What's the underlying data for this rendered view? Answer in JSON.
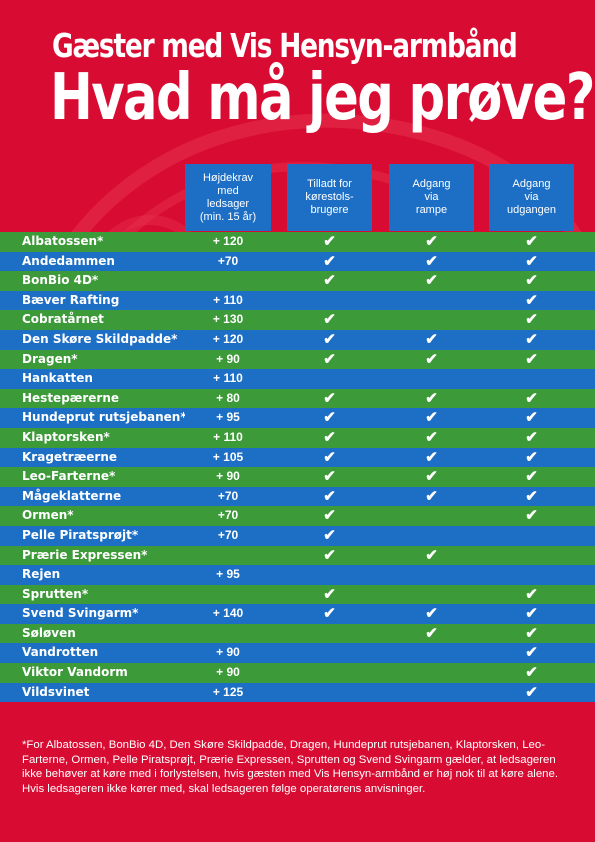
{
  "title_line1": "Gæster med Vis Hensyn-armbånd",
  "title_line2": "Hvad må jeg prøve?",
  "columns": [
    "Højdekrav\nmed\nledsager\n(min. 15 år)",
    "Tilladt for\nkørestols-\nbrugere",
    "Adgang\nvia\nrampe",
    "Adgang\nvia\nudgangen"
  ],
  "check_symbol": "✔",
  "colors": {
    "background": "#d80c32",
    "green_row": "#3d9a38",
    "blue_cell": "#1d6fc5"
  },
  "rows": [
    {
      "name": "Albatossen*",
      "height": "+ 120",
      "wheelchair": true,
      "ramp": true,
      "exit": true
    },
    {
      "name": "Andedammen",
      "height": "+70",
      "wheelchair": true,
      "ramp": true,
      "exit": true
    },
    {
      "name": "BonBio 4D*",
      "height": "",
      "wheelchair": true,
      "ramp": true,
      "exit": true
    },
    {
      "name": "Bæver Rafting",
      "height": "+ 110",
      "wheelchair": false,
      "ramp": false,
      "exit": true
    },
    {
      "name": "Cobratårnet",
      "height": "+ 130",
      "wheelchair": true,
      "ramp": false,
      "exit": true
    },
    {
      "name": "Den Skøre Skildpadde*",
      "height": "+ 120",
      "wheelchair": true,
      "ramp": true,
      "exit": true
    },
    {
      "name": "Dragen*",
      "height": "+ 90",
      "wheelchair": true,
      "ramp": true,
      "exit": true
    },
    {
      "name": "Hankatten",
      "height": "+ 110",
      "wheelchair": false,
      "ramp": false,
      "exit": false
    },
    {
      "name": "Hestepærerne",
      "height": "+ 80",
      "wheelchair": true,
      "ramp": true,
      "exit": true
    },
    {
      "name": "Hundeprut rutsjebanen*",
      "height": "+ 95",
      "wheelchair": true,
      "ramp": true,
      "exit": true
    },
    {
      "name": "Klaptorsken*",
      "height": "+ 110",
      "wheelchair": true,
      "ramp": true,
      "exit": true
    },
    {
      "name": "Kragetræerne",
      "height": "+ 105",
      "wheelchair": true,
      "ramp": true,
      "exit": true
    },
    {
      "name": "Leo-Farterne*",
      "height": "+ 90",
      "wheelchair": true,
      "ramp": true,
      "exit": true
    },
    {
      "name": "Mågeklatterne",
      "height": "+70",
      "wheelchair": true,
      "ramp": true,
      "exit": true
    },
    {
      "name": "Ormen*",
      "height": "+70",
      "wheelchair": true,
      "ramp": false,
      "exit": true
    },
    {
      "name": "Pelle Piratsprøjt*",
      "height": "+70",
      "wheelchair": true,
      "ramp": false,
      "exit": false
    },
    {
      "name": "Prærie Expressen*",
      "height": "",
      "wheelchair": true,
      "ramp": true,
      "exit": false
    },
    {
      "name": "Rejen",
      "height": "+ 95",
      "wheelchair": false,
      "ramp": false,
      "exit": false
    },
    {
      "name": "Sprutten*",
      "height": "",
      "wheelchair": true,
      "ramp": false,
      "exit": true
    },
    {
      "name": "Svend Svingarm*",
      "height": "+ 140",
      "wheelchair": true,
      "ramp": true,
      "exit": true
    },
    {
      "name": "Søløven",
      "height": "",
      "wheelchair": false,
      "ramp": true,
      "exit": true
    },
    {
      "name": "Vandrotten",
      "height": "+ 90",
      "wheelchair": false,
      "ramp": false,
      "exit": true
    },
    {
      "name": "Viktor Vandorm",
      "height": "+ 90",
      "wheelchair": false,
      "ramp": false,
      "exit": true
    },
    {
      "name": "Vildsvinet",
      "height": "+ 125",
      "wheelchair": false,
      "ramp": false,
      "exit": true
    }
  ],
  "row_colors": [
    "green",
    "blue",
    "green",
    "blue",
    "green",
    "blue",
    "green",
    "blue",
    "green",
    "blue",
    "green",
    "blue",
    "green",
    "blue",
    "green",
    "blue",
    "green",
    "blue",
    "green",
    "blue",
    "green",
    "blue",
    "green",
    "blue"
  ],
  "footnote": "*For Albatossen, BonBio 4D, Den Skøre Skildpadde, Dragen, Hundeprut rutsjebanen, Klaptorsken, Leo-Farterne, Ormen, Pelle Piratsprøjt, Prærie Expressen, Sprutten og Svend Svingarm gælder, at ledsageren ikke behøver at køre med i forlystelsen, hvis gæsten med Vis Hensyn-armbånd er høj nok til at køre alene. Hvis ledsageren ikke kører med, skal ledsageren følge operatørens anvisninger."
}
